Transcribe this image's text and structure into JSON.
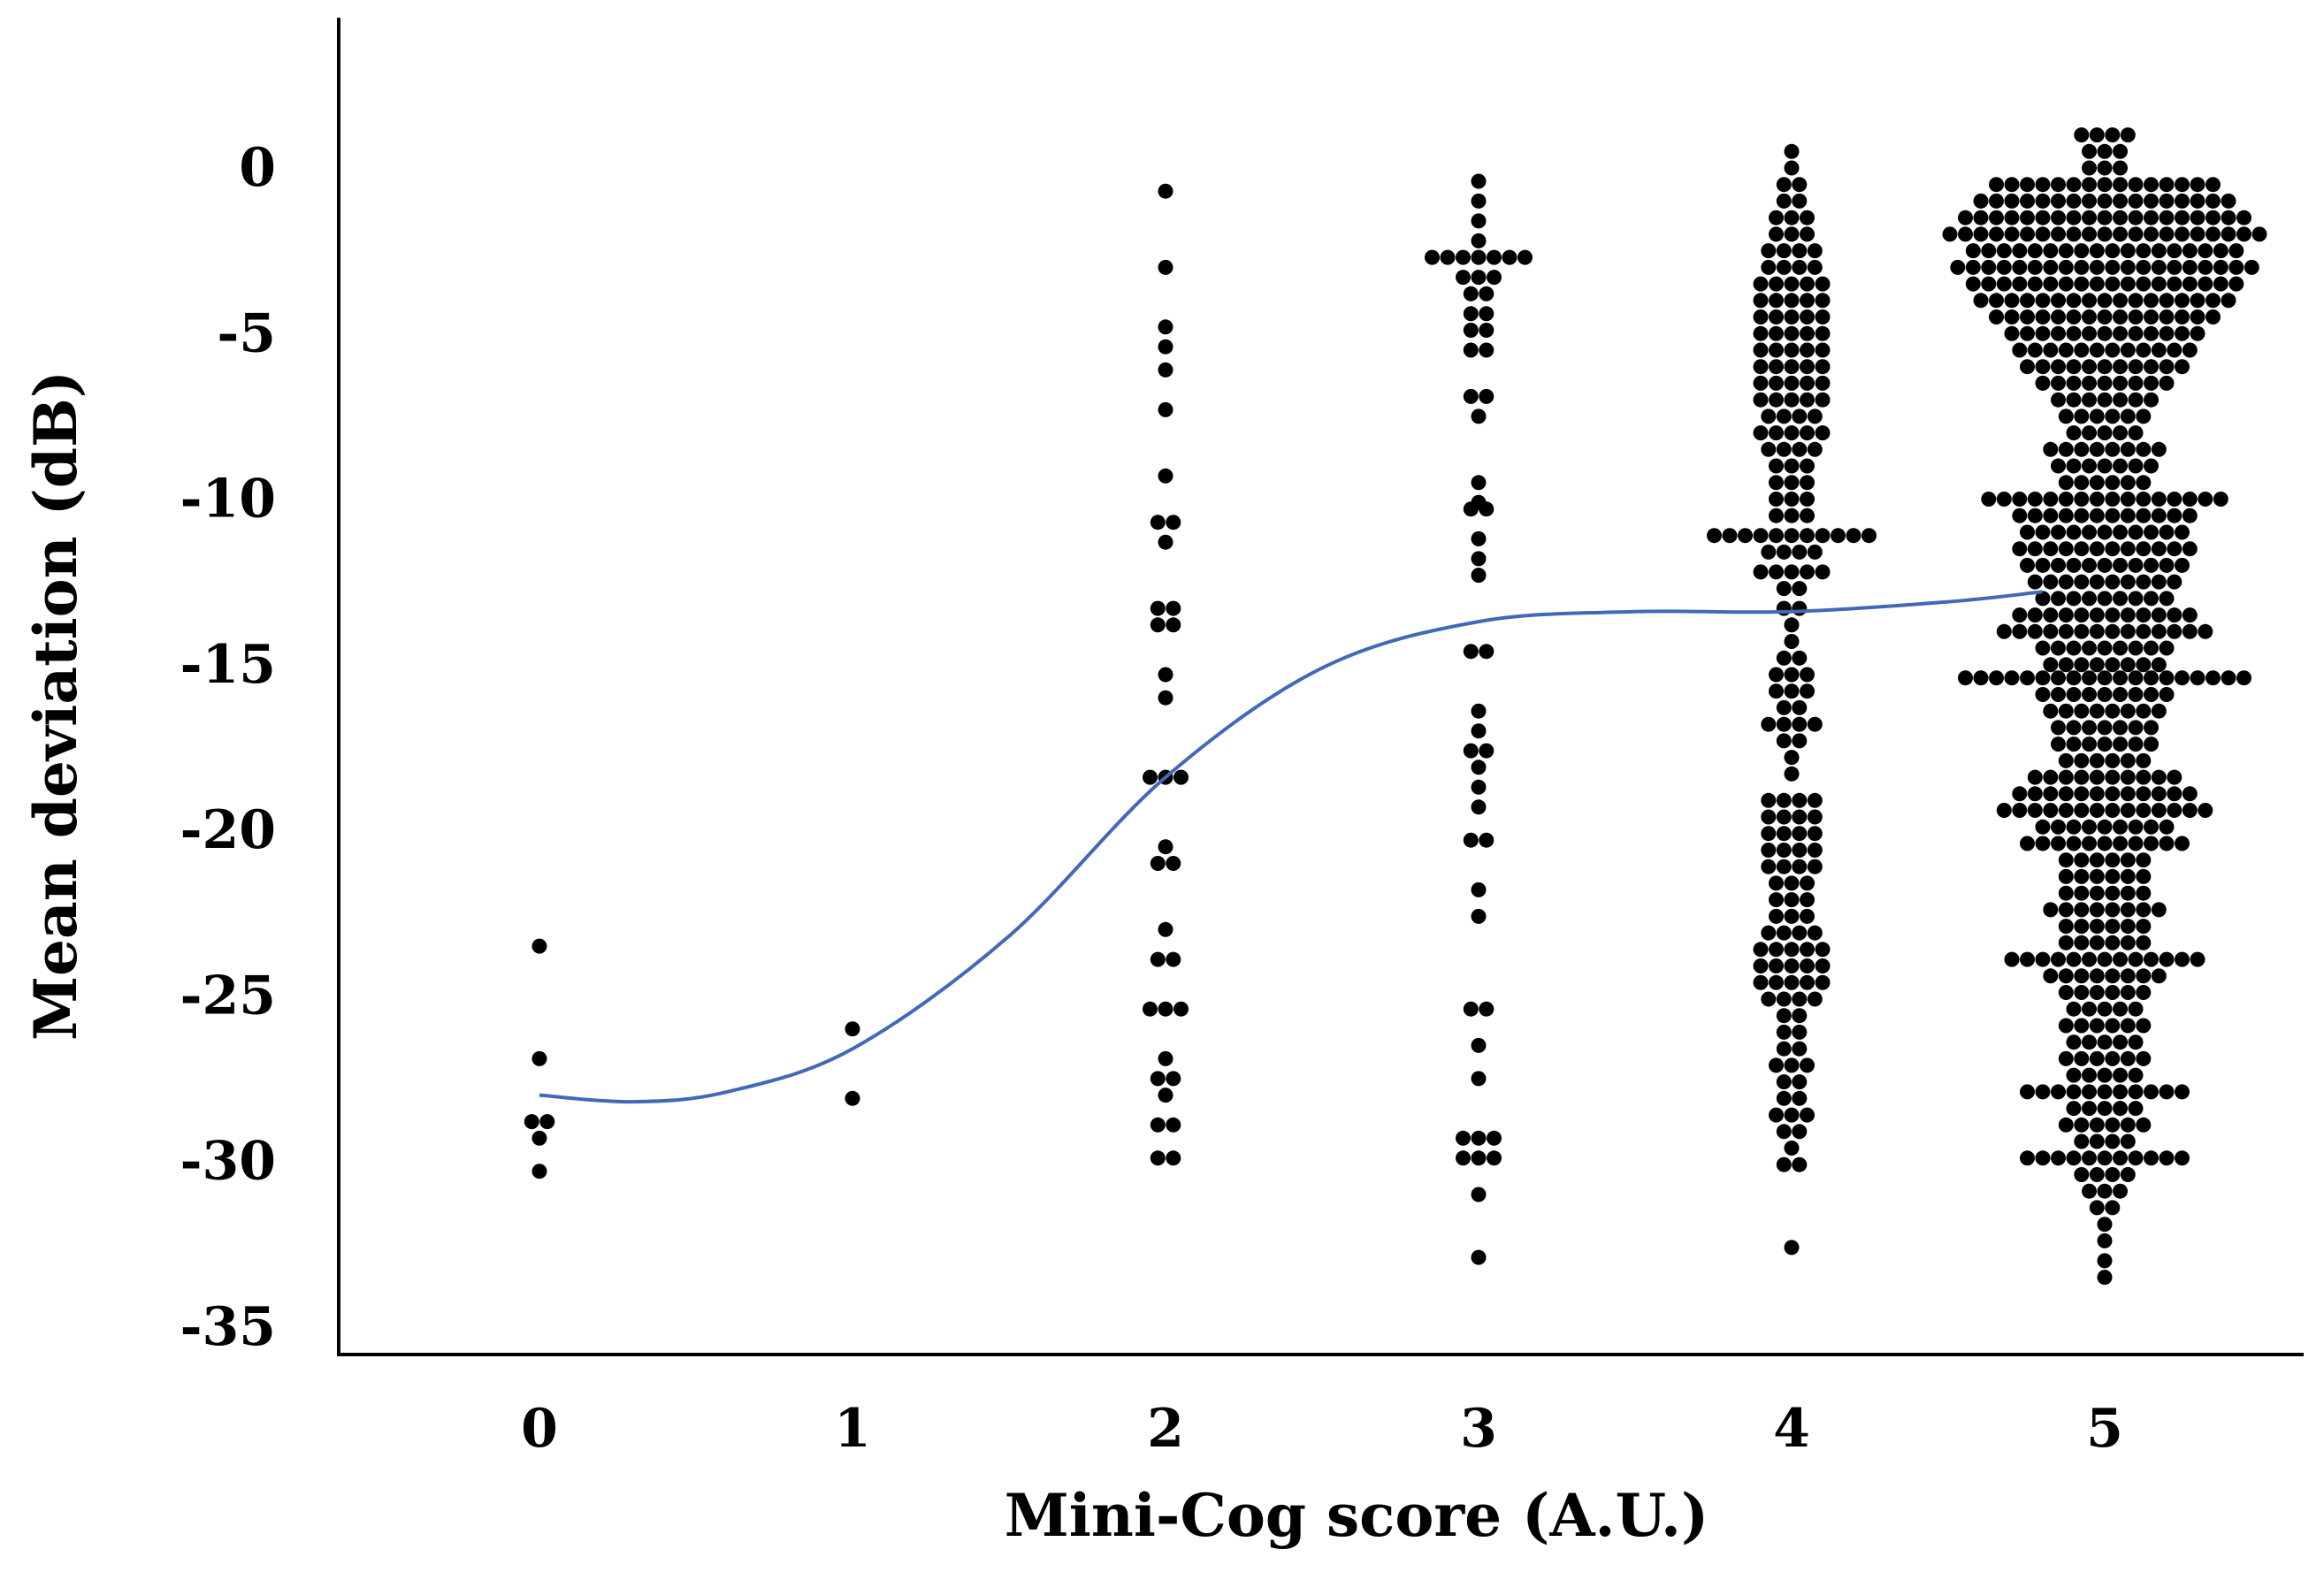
{
  "chart_data": {
    "type": "scatter",
    "title": "",
    "xlabel": "Mini-Cog score (A.U.)",
    "ylabel": "Mean deviation (dB)",
    "x_ticks": [
      0,
      1,
      2,
      3,
      4,
      5
    ],
    "y_ticks": [
      0,
      -5,
      -10,
      -15,
      -20,
      -25,
      -30,
      -35
    ],
    "xlim": [
      -0.65,
      5.6
    ],
    "ylim": [
      -36,
      4.5
    ],
    "grid": false,
    "legend": "none",
    "colors": {
      "points": "#000000",
      "trend_line": "#4169b8",
      "axis": "#000000"
    },
    "series": [
      {
        "kind": "beeswarm",
        "points_per_group": [
          {
            "x": 0,
            "rows": [
              {
                "y": -23.5,
                "n": 1
              },
              {
                "y": -26.9,
                "n": 1
              },
              {
                "y": -28.8,
                "n": 2
              },
              {
                "y": -29.3,
                "n": 1
              },
              {
                "y": -30.3,
                "n": 1
              }
            ]
          },
          {
            "x": 1,
            "rows": [
              {
                "y": -26.0,
                "n": 1
              },
              {
                "y": -28.1,
                "n": 1
              }
            ]
          },
          {
            "x": 2,
            "rows": [
              {
                "y": -0.7,
                "n": 1
              },
              {
                "y": -3.0,
                "n": 1
              },
              {
                "y": -4.8,
                "n": 1
              },
              {
                "y": -5.4,
                "n": 1
              },
              {
                "y": -6.1,
                "n": 1
              },
              {
                "y": -7.3,
                "n": 1
              },
              {
                "y": -9.3,
                "n": 1
              },
              {
                "y": -10.7,
                "n": 2
              },
              {
                "y": -11.3,
                "n": 1
              },
              {
                "y": -13.3,
                "n": 2
              },
              {
                "y": -13.8,
                "n": 2
              },
              {
                "y": -15.3,
                "n": 1
              },
              {
                "y": -16.0,
                "n": 1
              },
              {
                "y": -18.4,
                "n": 3
              },
              {
                "y": -20.5,
                "n": 1
              },
              {
                "y": -21.0,
                "n": 2
              },
              {
                "y": -23.0,
                "n": 1
              },
              {
                "y": -23.9,
                "n": 2
              },
              {
                "y": -25.4,
                "n": 3
              },
              {
                "y": -26.9,
                "n": 1
              },
              {
                "y": -27.5,
                "n": 2
              },
              {
                "y": -28.0,
                "n": 1
              },
              {
                "y": -28.9,
                "n": 2
              },
              {
                "y": -29.9,
                "n": 2
              }
            ]
          },
          {
            "x": 3,
            "rows": [
              {
                "y": -0.4,
                "n": 1
              },
              {
                "y": -1.0,
                "n": 1
              },
              {
                "y": -1.6,
                "n": 1
              },
              {
                "y": -2.2,
                "n": 1
              },
              {
                "y": -2.7,
                "n": 7
              },
              {
                "y": -3.3,
                "n": 3
              },
              {
                "y": -3.8,
                "n": 2
              },
              {
                "y": -4.4,
                "n": 2
              },
              {
                "y": -4.9,
                "n": 2
              },
              {
                "y": -5.5,
                "n": 2
              },
              {
                "y": -6.9,
                "n": 2
              },
              {
                "y": -7.5,
                "n": 1
              },
              {
                "y": -9.5,
                "n": 1
              },
              {
                "y": -10.1,
                "n": 1
              },
              {
                "y": -10.3,
                "n": 2
              },
              {
                "y": -11.2,
                "n": 1
              },
              {
                "y": -11.8,
                "n": 1
              },
              {
                "y": -12.3,
                "n": 1
              },
              {
                "y": -14.6,
                "n": 2
              },
              {
                "y": -16.4,
                "n": 1
              },
              {
                "y": -17.0,
                "n": 1
              },
              {
                "y": -17.6,
                "n": 2
              },
              {
                "y": -18.1,
                "n": 1
              },
              {
                "y": -18.7,
                "n": 1
              },
              {
                "y": -19.3,
                "n": 1
              },
              {
                "y": -20.3,
                "n": 2
              },
              {
                "y": -21.8,
                "n": 1
              },
              {
                "y": -22.6,
                "n": 1
              },
              {
                "y": -25.4,
                "n": 2
              },
              {
                "y": -26.5,
                "n": 1
              },
              {
                "y": -27.5,
                "n": 1
              },
              {
                "y": -29.3,
                "n": 3
              },
              {
                "y": -29.9,
                "n": 3
              },
              {
                "y": -31.0,
                "n": 1
              },
              {
                "y": -32.9,
                "n": 1
              }
            ]
          },
          {
            "x": 4,
            "rows": [
              {
                "y": 0.5,
                "n": 1
              },
              {
                "y": 0.0,
                "n": 1
              },
              {
                "y": -0.5,
                "n": 2
              },
              {
                "y": -1.0,
                "n": 2
              },
              {
                "y": -1.5,
                "n": 3
              },
              {
                "y": -2.0,
                "n": 3
              },
              {
                "y": -2.5,
                "n": 4
              },
              {
                "y": -3.0,
                "n": 4
              },
              {
                "y": -3.5,
                "n": 5
              },
              {
                "y": -4.0,
                "n": 5
              },
              {
                "y": -4.5,
                "n": 5
              },
              {
                "y": -5.0,
                "n": 5
              },
              {
                "y": -5.5,
                "n": 5
              },
              {
                "y": -6.0,
                "n": 5
              },
              {
                "y": -6.5,
                "n": 5
              },
              {
                "y": -7.0,
                "n": 5
              },
              {
                "y": -7.5,
                "n": 4
              },
              {
                "y": -8.0,
                "n": 5
              },
              {
                "y": -8.5,
                "n": 4
              },
              {
                "y": -9.0,
                "n": 3
              },
              {
                "y": -9.5,
                "n": 3
              },
              {
                "y": -10.0,
                "n": 3
              },
              {
                "y": -10.5,
                "n": 3
              },
              {
                "y": -11.1,
                "n": 11
              },
              {
                "y": -11.6,
                "n": 4
              },
              {
                "y": -12.2,
                "n": 5
              },
              {
                "y": -12.7,
                "n": 2
              },
              {
                "y": -13.3,
                "n": 2
              },
              {
                "y": -13.8,
                "n": 1
              },
              {
                "y": -14.3,
                "n": 1
              },
              {
                "y": -14.8,
                "n": 2
              },
              {
                "y": -15.3,
                "n": 3
              },
              {
                "y": -15.8,
                "n": 3
              },
              {
                "y": -16.3,
                "n": 2
              },
              {
                "y": -16.8,
                "n": 4
              },
              {
                "y": -17.3,
                "n": 2
              },
              {
                "y": -17.8,
                "n": 1
              },
              {
                "y": -18.3,
                "n": 1
              },
              {
                "y": -19.1,
                "n": 4
              },
              {
                "y": -19.6,
                "n": 4
              },
              {
                "y": -20.1,
                "n": 4
              },
              {
                "y": -20.6,
                "n": 4
              },
              {
                "y": -21.1,
                "n": 4
              },
              {
                "y": -21.6,
                "n": 3
              },
              {
                "y": -22.1,
                "n": 3
              },
              {
                "y": -22.6,
                "n": 3
              },
              {
                "y": -23.1,
                "n": 4
              },
              {
                "y": -23.6,
                "n": 5
              },
              {
                "y": -24.1,
                "n": 5
              },
              {
                "y": -24.6,
                "n": 5
              },
              {
                "y": -25.1,
                "n": 4
              },
              {
                "y": -25.6,
                "n": 2
              },
              {
                "y": -26.1,
                "n": 2
              },
              {
                "y": -26.6,
                "n": 2
              },
              {
                "y": -27.1,
                "n": 3
              },
              {
                "y": -27.6,
                "n": 2
              },
              {
                "y": -28.1,
                "n": 2
              },
              {
                "y": -28.6,
                "n": 3
              },
              {
                "y": -29.1,
                "n": 2
              },
              {
                "y": -29.6,
                "n": 1
              },
              {
                "y": -30.1,
                "n": 2
              },
              {
                "y": -32.6,
                "n": 1
              }
            ]
          },
          {
            "x": 5,
            "rows": [
              {
                "y": 1.0,
                "n": 4
              },
              {
                "y": 0.5,
                "n": 3
              },
              {
                "y": 0.0,
                "n": 3
              },
              {
                "y": -0.5,
                "n": 15
              },
              {
                "y": -1.0,
                "n": 17
              },
              {
                "y": -1.5,
                "n": 19
              },
              {
                "y": -2.0,
                "n": 21
              },
              {
                "y": -2.5,
                "n": 18
              },
              {
                "y": -3.0,
                "n": 20
              },
              {
                "y": -3.5,
                "n": 18
              },
              {
                "y": -4.0,
                "n": 17
              },
              {
                "y": -4.5,
                "n": 15
              },
              {
                "y": -5.0,
                "n": 13
              },
              {
                "y": -5.5,
                "n": 12
              },
              {
                "y": -6.0,
                "n": 11
              },
              {
                "y": -6.5,
                "n": 9
              },
              {
                "y": -7.0,
                "n": 7
              },
              {
                "y": -7.5,
                "n": 6
              },
              {
                "y": -8.0,
                "n": 5
              },
              {
                "y": -8.5,
                "n": 8
              },
              {
                "y": -9.0,
                "n": 7
              },
              {
                "y": -9.5,
                "n": 6
              },
              {
                "y": -10.0,
                "n": 16
              },
              {
                "y": -10.5,
                "n": 12
              },
              {
                "y": -11.0,
                "n": 11
              },
              {
                "y": -11.5,
                "n": 12
              },
              {
                "y": -12.0,
                "n": 11
              },
              {
                "y": -12.5,
                "n": 10
              },
              {
                "y": -13.0,
                "n": 9
              },
              {
                "y": -13.5,
                "n": 12
              },
              {
                "y": -14.0,
                "n": 14
              },
              {
                "y": -14.5,
                "n": 9
              },
              {
                "y": -15.0,
                "n": 8
              },
              {
                "y": -15.4,
                "n": 19
              },
              {
                "y": -15.9,
                "n": 9
              },
              {
                "y": -16.4,
                "n": 8
              },
              {
                "y": -16.9,
                "n": 7
              },
              {
                "y": -17.4,
                "n": 7
              },
              {
                "y": -17.9,
                "n": 6
              },
              {
                "y": -18.4,
                "n": 10
              },
              {
                "y": -18.9,
                "n": 12
              },
              {
                "y": -19.4,
                "n": 14
              },
              {
                "y": -19.9,
                "n": 9
              },
              {
                "y": -20.4,
                "n": 11
              },
              {
                "y": -20.9,
                "n": 6
              },
              {
                "y": -21.4,
                "n": 6
              },
              {
                "y": -21.9,
                "n": 6
              },
              {
                "y": -22.4,
                "n": 8
              },
              {
                "y": -22.9,
                "n": 6
              },
              {
                "y": -23.4,
                "n": 6
              },
              {
                "y": -23.9,
                "n": 13
              },
              {
                "y": -24.4,
                "n": 8
              },
              {
                "y": -24.9,
                "n": 6
              },
              {
                "y": -25.4,
                "n": 5
              },
              {
                "y": -25.9,
                "n": 6
              },
              {
                "y": -26.4,
                "n": 5
              },
              {
                "y": -26.9,
                "n": 6
              },
              {
                "y": -27.4,
                "n": 5
              },
              {
                "y": -27.9,
                "n": 11
              },
              {
                "y": -28.4,
                "n": 5
              },
              {
                "y": -28.9,
                "n": 6
              },
              {
                "y": -29.4,
                "n": 4
              },
              {
                "y": -29.9,
                "n": 11
              },
              {
                "y": -30.4,
                "n": 4
              },
              {
                "y": -30.9,
                "n": 3
              },
              {
                "y": -31.4,
                "n": 2
              },
              {
                "y": -31.9,
                "n": 1
              },
              {
                "y": -32.4,
                "n": 1
              },
              {
                "y": -33.0,
                "n": 1
              },
              {
                "y": -33.5,
                "n": 1
              }
            ]
          }
        ]
      },
      {
        "kind": "trend_line",
        "points": [
          {
            "x": 0,
            "y": -28.0
          },
          {
            "x": 0.3,
            "y": -28.2
          },
          {
            "x": 0.6,
            "y": -27.9
          },
          {
            "x": 1.0,
            "y": -26.6
          },
          {
            "x": 1.5,
            "y": -23.2
          },
          {
            "x": 2.0,
            "y": -18.4
          },
          {
            "x": 2.5,
            "y": -15.1
          },
          {
            "x": 3.0,
            "y": -13.7
          },
          {
            "x": 3.5,
            "y": -13.4
          },
          {
            "x": 4.0,
            "y": -13.4
          },
          {
            "x": 4.5,
            "y": -13.1
          },
          {
            "x": 4.8,
            "y": -12.8
          }
        ]
      }
    ]
  }
}
